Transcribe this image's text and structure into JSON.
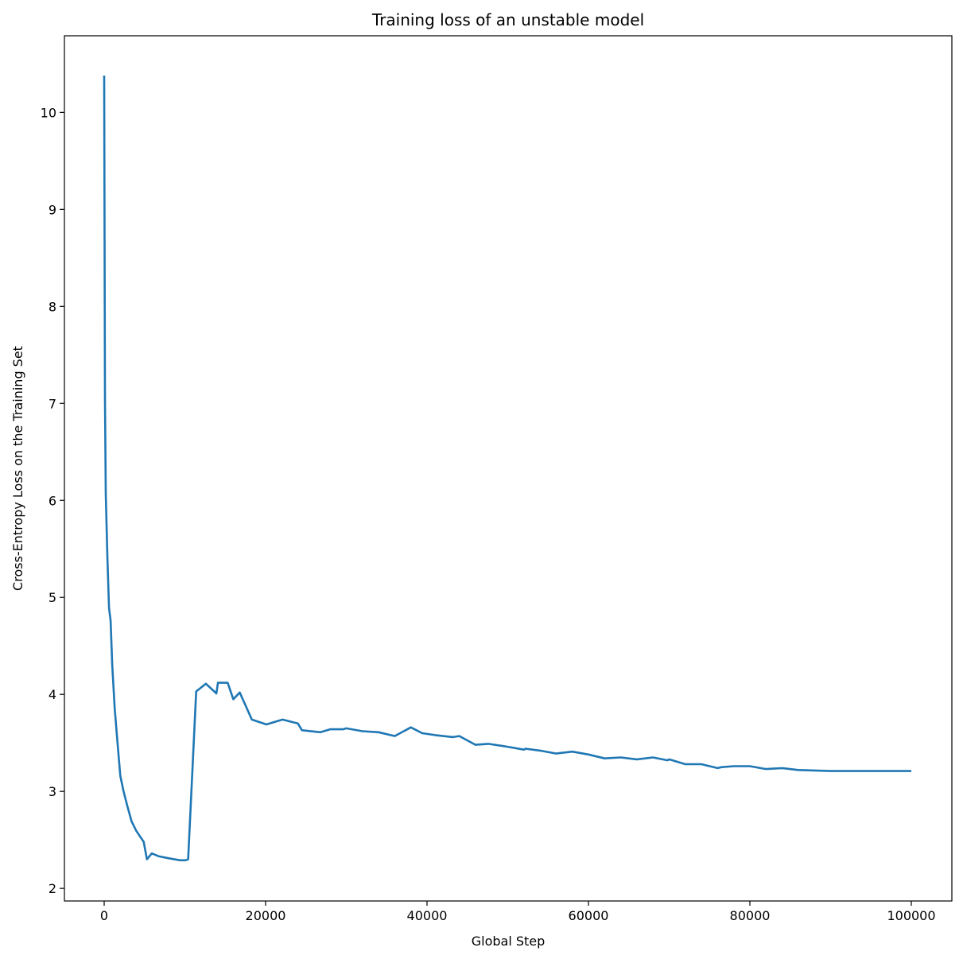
{
  "chart_data": {
    "type": "line",
    "title": "Training loss of an unstable model",
    "xlabel": "Global Step",
    "ylabel": "Cross-Entropy Loss on the Training Set",
    "xlim": [
      -4926,
      105025
    ],
    "ylim": [
      1.87,
      10.79
    ],
    "xticks": [
      0,
      20000,
      40000,
      60000,
      80000,
      100000
    ],
    "xtick_labels": [
      "0",
      "20000",
      "40000",
      "60000",
      "80000",
      "100000"
    ],
    "yticks": [
      2,
      3,
      4,
      5,
      6,
      7,
      8,
      9,
      10
    ],
    "ytick_labels": [
      "2",
      "3",
      "4",
      "5",
      "6",
      "7",
      "8",
      "9",
      "10"
    ],
    "grid": false,
    "color": "#1f77b4",
    "series": [
      {
        "x": [
          0,
          100,
          200,
          400,
          600,
          800,
          1000,
          1300,
          1700,
          2000,
          2400,
          2900,
          3400,
          4000,
          4900,
          5300,
          5900,
          6800,
          8000,
          9400,
          10100,
          10400,
          11400,
          12600,
          13900,
          14100,
          15300,
          16000,
          16800,
          18300,
          20100,
          22100,
          24000,
          24500,
          26800,
          28000,
          29600,
          30000,
          32000,
          34000,
          36000,
          38000,
          39400,
          41000,
          43200,
          44000,
          46000,
          47600,
          50000,
          52000,
          52200,
          54000,
          56000,
          58000,
          60000,
          62000,
          64000,
          66000,
          68000,
          69800,
          70000,
          72000,
          74000,
          76000,
          76500,
          78000,
          80000,
          82000,
          84000,
          86000,
          90000,
          94000,
          96000,
          98000,
          100000
        ],
        "y": [
          10.38,
          7.06,
          6.07,
          5.4,
          4.89,
          4.76,
          4.31,
          3.86,
          3.45,
          3.16,
          3.0,
          2.84,
          2.69,
          2.59,
          2.48,
          2.3,
          2.36,
          2.33,
          2.31,
          2.29,
          2.29,
          2.3,
          4.03,
          4.11,
          4.01,
          4.12,
          4.12,
          3.95,
          4.02,
          3.74,
          3.69,
          3.74,
          3.7,
          3.63,
          3.61,
          3.64,
          3.64,
          3.65,
          3.62,
          3.61,
          3.57,
          3.66,
          3.6,
          3.58,
          3.56,
          3.57,
          3.48,
          3.49,
          3.46,
          3.43,
          3.44,
          3.42,
          3.39,
          3.41,
          3.38,
          3.34,
          3.35,
          3.33,
          3.35,
          3.32,
          3.33,
          3.28,
          3.28,
          3.24,
          3.25,
          3.26,
          3.26,
          3.23,
          3.24,
          3.22,
          3.21,
          3.21,
          3.21,
          3.21,
          3.21
        ]
      }
    ]
  }
}
